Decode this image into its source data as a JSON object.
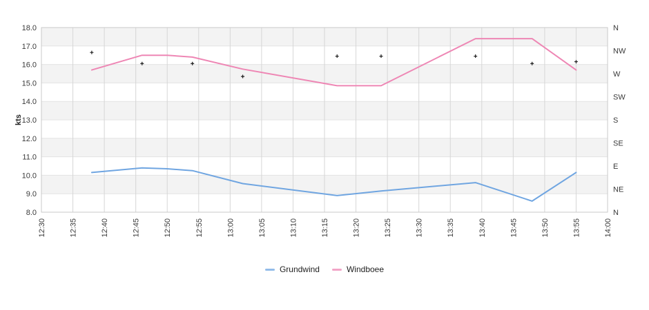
{
  "chart_data": {
    "type": "line",
    "title": "",
    "ylabel": "kts",
    "x_range": [
      "12:30",
      "14:00"
    ],
    "x_ticks": [
      "12:30",
      "12:35",
      "12:40",
      "12:45",
      "12:50",
      "12:55",
      "13:00",
      "13:05",
      "13:10",
      "13:15",
      "13:20",
      "13:25",
      "13:30",
      "13:35",
      "13:40",
      "13:45",
      "13:50",
      "13:55",
      "14:00"
    ],
    "y_ticks_left": [
      "18.0",
      "17.0",
      "16.0",
      "15.0",
      "14.0",
      "13.0",
      "12.0",
      "11.0",
      "10.0",
      "9.0",
      "8.0"
    ],
    "y_ticks_right": [
      "N",
      "NW",
      "W",
      "SW",
      "S",
      "SE",
      "E",
      "NE",
      "N"
    ],
    "ylim": [
      8,
      18
    ],
    "grid": true,
    "alternating_band_fill": "#f3f3f3",
    "legend_position": "bottom-center",
    "x": [
      "12:38",
      "12:46",
      "12:50",
      "12:54",
      "13:02",
      "13:17",
      "13:24",
      "13:39",
      "13:48",
      "13:55"
    ],
    "series": [
      {
        "name": "Grundwind",
        "color": "#6fa5e1",
        "values": [
          10.15,
          10.4,
          10.35,
          10.25,
          9.55,
          8.9,
          9.15,
          9.6,
          8.6,
          10.15
        ]
      },
      {
        "name": "Windboee",
        "color": "#ee86b4",
        "values": [
          15.7,
          16.5,
          16.5,
          16.4,
          15.75,
          14.85,
          14.85,
          17.4,
          17.4,
          15.7
        ]
      }
    ],
    "direction_markers": {
      "marker": "+",
      "color": "#1a1a1a",
      "x": [
        "12:38",
        "12:46",
        "12:54",
        "13:02",
        "13:17",
        "13:24",
        "13:39",
        "13:48",
        "13:55"
      ],
      "values_kts_axis": [
        16.65,
        16.05,
        16.05,
        15.35,
        16.45,
        16.45,
        16.45,
        16.05,
        16.15
      ],
      "degrees": [
        311,
        290,
        290,
        265,
        304,
        304,
        304,
        290,
        293
      ]
    }
  },
  "legend": {
    "items": [
      {
        "label": "Grundwind",
        "color": "#6fa5e1"
      },
      {
        "label": "Windboee",
        "color": "#ee86b4"
      }
    ]
  }
}
